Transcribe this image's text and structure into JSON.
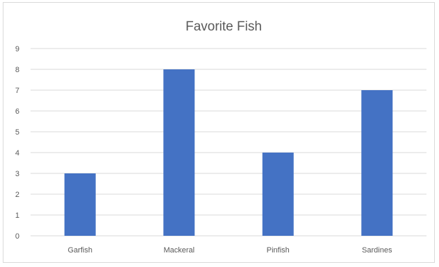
{
  "chart_data": {
    "type": "bar",
    "title": "Favorite Fish",
    "categories": [
      "Garfish",
      "Mackeral",
      "Pinfish",
      "Sardines"
    ],
    "values": [
      3,
      8,
      4,
      7
    ],
    "ylim": [
      0,
      9
    ],
    "yticks": [
      0,
      1,
      2,
      3,
      4,
      5,
      6,
      7,
      8,
      9
    ],
    "grid": true,
    "bar_color": "#4472c4",
    "grid_color": "#d9d9d9"
  }
}
